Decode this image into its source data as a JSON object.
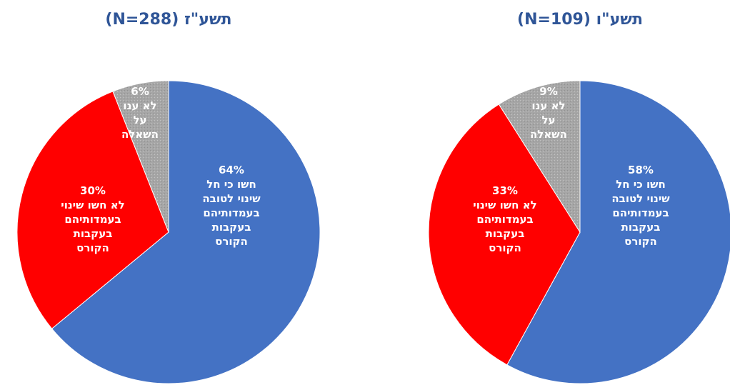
{
  "chart_data": [
    {
      "type": "pie",
      "title": "תשע\"ז (N=288)",
      "slices": [
        {
          "value": 64,
          "pct_label": "64%",
          "label_lines": [
            "חשו כי חל",
            "שינוי לטובה",
            "בעמדותיהם",
            "בעקבות",
            "הקורס"
          ],
          "color": "#4472c4"
        },
        {
          "value": 30,
          "pct_label": "30%",
          "label_lines": [
            "לא חשו שינוי",
            "בעמדותיהם",
            "בעקבות",
            "הקורס"
          ],
          "color": "#ff0000"
        },
        {
          "value": 6,
          "pct_label": "6%",
          "label_lines": [
            "לא ענו",
            "על",
            "השאלה"
          ],
          "color": "#a6a6a6"
        }
      ]
    },
    {
      "type": "pie",
      "title": "תשע\"ו (N=109)",
      "slices": [
        {
          "value": 58,
          "pct_label": "58%",
          "label_lines": [
            "חשו כי חל",
            "שינוי לטובה",
            "בעמדותיהם",
            "בעקבות",
            "הקורס"
          ],
          "color": "#4472c4"
        },
        {
          "value": 33,
          "pct_label": "33%",
          "label_lines": [
            "לא חשו שינוי",
            "בעמדותיהם",
            "בעקבות",
            "הקורס"
          ],
          "color": "#ff0000"
        },
        {
          "value": 9,
          "pct_label": "9%",
          "label_lines": [
            "לא ענו",
            "על",
            "השאלה"
          ],
          "color": "#a6a6a6"
        }
      ]
    }
  ]
}
